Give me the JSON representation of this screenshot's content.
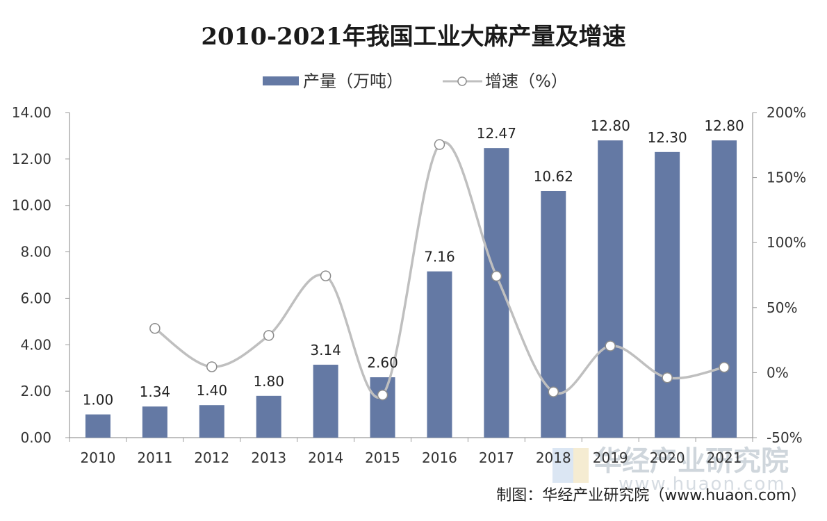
{
  "chart_data": {
    "type": "bar",
    "title": "2010-2021年我国工业大麻产量及增速",
    "categories": [
      "2010",
      "2011",
      "2012",
      "2013",
      "2014",
      "2015",
      "2016",
      "2017",
      "2018",
      "2019",
      "2020",
      "2021"
    ],
    "series": [
      {
        "name": "产量（万吨）",
        "type": "bar",
        "axis": "left",
        "values": [
          1.0,
          1.34,
          1.4,
          1.8,
          3.14,
          2.6,
          7.16,
          12.47,
          10.62,
          12.8,
          12.3,
          12.8
        ],
        "labels": [
          "1.00",
          "1.34",
          "1.40",
          "1.80",
          "3.14",
          "2.60",
          "7.16",
          "12.47",
          "10.62",
          "12.80",
          "12.30",
          "12.80"
        ]
      },
      {
        "name": "增速（%）",
        "type": "line",
        "axis": "right",
        "smooth": true,
        "values": [
          null,
          34,
          4.5,
          28.6,
          74.4,
          -17.2,
          175.4,
          74.2,
          -14.8,
          20.5,
          -3.9,
          4.1
        ]
      }
    ],
    "y_left": {
      "ylim": [
        0,
        14
      ],
      "ticks": [
        "0.00",
        "2.00",
        "4.00",
        "6.00",
        "8.00",
        "10.00",
        "12.00",
        "14.00"
      ]
    },
    "y_right": {
      "ylim": [
        -50,
        200
      ],
      "ticks": [
        "-50%",
        "0%",
        "50%",
        "100%",
        "150%",
        "200%"
      ]
    },
    "legend_position": "top-center",
    "grid": false
  },
  "colors": {
    "bar": "#6479a4",
    "line": "#bfbfbf",
    "marker_fill": "#ffffff",
    "marker_stroke": "#8c8c8c",
    "axis": "#9a9a9a"
  },
  "source": "制图：华经产业研究院（www.huaon.com）",
  "watermark": {
    "text": "华经产业研究院",
    "url": "www.huaon.com"
  }
}
